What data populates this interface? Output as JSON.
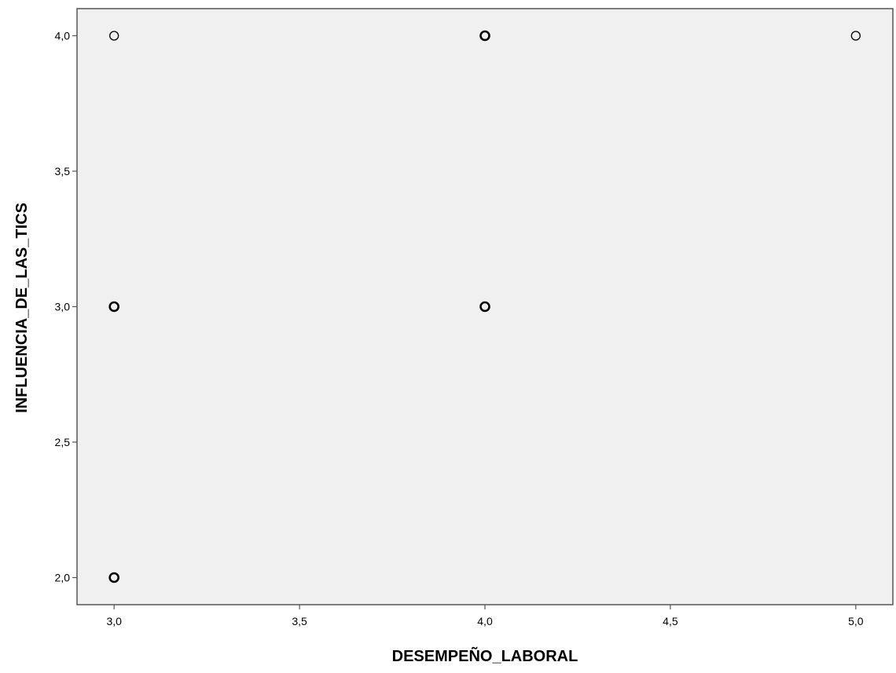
{
  "chart_data": {
    "type": "scatter",
    "title": "",
    "xlabel": "DESEMPEÑO_LABORAL",
    "ylabel": "INFLUENCIA_DE_LAS_TICS",
    "xlim": [
      2.9,
      5.1
    ],
    "ylim": [
      1.9,
      4.1
    ],
    "x_ticks": [
      3.0,
      3.5,
      4.0,
      4.5,
      5.0
    ],
    "y_ticks": [
      2.0,
      2.5,
      3.0,
      3.5,
      4.0
    ],
    "x_tick_labels": [
      "3,0",
      "3,5",
      "4,0",
      "4,5",
      "5,0"
    ],
    "y_tick_labels": [
      "2,0",
      "2,5",
      "3,0",
      "3,5",
      "4,0"
    ],
    "grid": false,
    "plot_background": "#f0f0f0",
    "marker": "open-circle",
    "marker_color": "#000000",
    "points": [
      {
        "x": 3.0,
        "y": 4.0,
        "overlap": false
      },
      {
        "x": 4.0,
        "y": 4.0,
        "overlap": true
      },
      {
        "x": 5.0,
        "y": 4.0,
        "overlap": false
      },
      {
        "x": 3.0,
        "y": 3.0,
        "overlap": true
      },
      {
        "x": 4.0,
        "y": 3.0,
        "overlap": true
      },
      {
        "x": 3.0,
        "y": 2.0,
        "overlap": true
      }
    ]
  }
}
